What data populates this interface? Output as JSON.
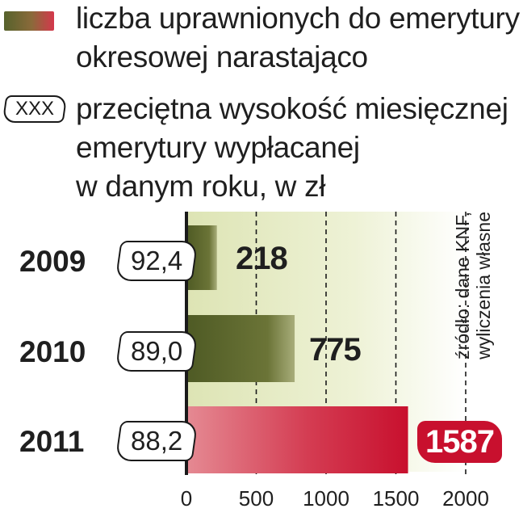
{
  "legend": {
    "count_line1": "liczba uprawnionych do emerytury",
    "count_line2": "okresowej narastająco",
    "box_sample": "XXX",
    "avg_line1": "przeciętna wysokość miesięcznej",
    "avg_line2": "emerytury wypłacanej",
    "avg_line3": "w danym roku, w zł"
  },
  "source": {
    "line1": "źródło: dane KNF,",
    "line2": "wyliczenia własne"
  },
  "colors": {
    "bar_green_dark": "#4e5a24",
    "bar_green_light": "#a8ad7a",
    "bar_red": "#c8102e",
    "bar_red_light": "#e58a93",
    "plot_bg": "#eef2d6"
  },
  "chart_data": {
    "type": "bar",
    "orientation": "horizontal",
    "categories": [
      "2009",
      "2010",
      "2011"
    ],
    "values": [
      218,
      775,
      1587
    ],
    "value_labels": [
      "218",
      "775",
      "1587"
    ],
    "avg_pension_labels": [
      "92,4",
      "89,0",
      "88,2"
    ],
    "xlim": [
      0,
      2000
    ],
    "xticks": [
      "0",
      "500",
      "1000",
      "1500",
      "2000"
    ],
    "grid": "vertical dashed"
  }
}
